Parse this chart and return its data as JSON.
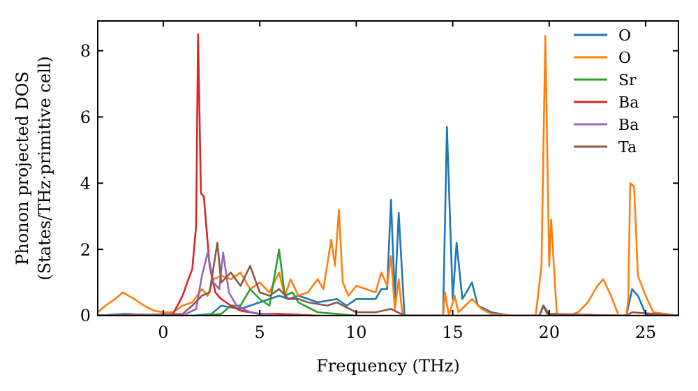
{
  "chart_data": {
    "type": "line",
    "xlabel": "Frequency (THz)",
    "ylabel": "Phonon projected DOS\n(States/THz·primitive cell)",
    "xlim": [
      -3.4,
      26.7
    ],
    "ylim": [
      0,
      8.9
    ],
    "xticks": [
      0,
      5,
      10,
      15,
      20,
      25
    ],
    "yticks": [
      0,
      2,
      4,
      6,
      8
    ],
    "grid": false,
    "legend": "top right",
    "marker": "none",
    "line_style": "solid",
    "series": [
      {
        "name": "O",
        "color": "#1f77b4",
        "x": [
          -3.4,
          -2,
          0,
          1.5,
          2.5,
          3,
          3.5,
          4,
          5,
          6,
          6.5,
          7,
          8,
          9,
          9.5,
          10,
          11,
          11.3,
          11.6,
          11.8,
          12,
          12.2,
          12.5,
          14.5,
          14.7,
          15,
          15.2,
          15.5,
          16,
          16.3,
          17,
          18,
          19.5,
          19.7,
          20,
          22,
          24,
          24.3,
          24.6,
          25,
          26.7
        ],
        "values": [
          0,
          0.05,
          0,
          0,
          0.05,
          0.3,
          0.25,
          0.2,
          0.4,
          0.6,
          0.5,
          0.6,
          0.4,
          0.5,
          0.3,
          0.5,
          0.5,
          0.8,
          0.8,
          3.5,
          0.5,
          3.1,
          0,
          0,
          5.7,
          0.5,
          2.2,
          0.5,
          1.0,
          0.3,
          0.1,
          0,
          0,
          0.3,
          0.05,
          0,
          0,
          0.8,
          0.6,
          0.05,
          0
        ]
      },
      {
        "name": "O",
        "color": "#ff7f0e",
        "x": [
          -3.4,
          -3,
          -2.5,
          -2.1,
          -1.5,
          -1,
          -0.5,
          0,
          0.5,
          1,
          1.5,
          2,
          2.3,
          2.6,
          3,
          3.5,
          4,
          4.5,
          5,
          5.5,
          6,
          6.3,
          6.6,
          7,
          7.5,
          8,
          8.3,
          8.7,
          8.9,
          9.1,
          9.3,
          9.6,
          10,
          10.5,
          11,
          11.3,
          11.6,
          11.8,
          12,
          12.2,
          12.4,
          14.5,
          14.6,
          14.8,
          15.1,
          15.3,
          16,
          16.5,
          17,
          18,
          19.3,
          19.6,
          19.8,
          20,
          20.1,
          20.4,
          21,
          21.5,
          22,
          22.5,
          22.8,
          23.2,
          23.6,
          24,
          24.1,
          24.2,
          24.4,
          24.6,
          25,
          25.4,
          26.7
        ],
        "values": [
          0.1,
          0.3,
          0.5,
          0.7,
          0.5,
          0.3,
          0.15,
          0.1,
          0.1,
          0.3,
          0.4,
          0.8,
          0.6,
          1.1,
          1.2,
          1.1,
          1.3,
          0.8,
          1.0,
          0.7,
          1.3,
          0.6,
          1.1,
          0.6,
          0.7,
          1.1,
          0.8,
          2.3,
          1.5,
          3.2,
          1.0,
          0.6,
          0.9,
          0.8,
          0.7,
          1.3,
          0.9,
          1.8,
          0.2,
          1.1,
          0,
          0,
          0.7,
          0,
          0.6,
          0.1,
          0.5,
          0.2,
          0.05,
          0,
          0,
          1.5,
          8.45,
          1.5,
          2.9,
          0,
          0,
          0.1,
          0.4,
          0.9,
          1.1,
          0.6,
          0,
          0,
          0.5,
          4.0,
          3.9,
          1.2,
          0.6,
          0.1,
          0
        ]
      },
      {
        "name": "Sr",
        "color": "#2ca02c",
        "x": [
          -3.4,
          2,
          3,
          3.5,
          4,
          4.5,
          5,
          5.5,
          6,
          6.3,
          6.7,
          7,
          8,
          9,
          10
        ],
        "values": [
          0,
          0,
          0.05,
          0.3,
          0.3,
          0.8,
          0.5,
          0.3,
          2.0,
          0.6,
          0.7,
          0.4,
          0.1,
          0.05,
          0
        ]
      },
      {
        "name": "Ba",
        "color": "#d62728",
        "x": [
          -3.4,
          0,
          0.5,
          1,
          1.3,
          1.5,
          1.7,
          1.8,
          1.95,
          2.1,
          2.4,
          2.7,
          3,
          3.5,
          4,
          5,
          6,
          8,
          26.7
        ],
        "values": [
          0,
          0,
          0.05,
          0.6,
          1.1,
          1.4,
          2.7,
          8.5,
          3.7,
          3.6,
          1.5,
          0.7,
          0.5,
          0.3,
          0.15,
          0.05,
          0.05,
          0,
          0
        ]
      },
      {
        "name": "Ba",
        "color": "#9467bd",
        "x": [
          -3.4,
          1,
          1.7,
          2,
          2.3,
          2.6,
          2.9,
          3.1,
          3.4,
          3.8,
          4.5,
          5,
          6
        ],
        "values": [
          0,
          0,
          0.2,
          1.2,
          1.9,
          1.0,
          0.8,
          1.9,
          0.7,
          0.3,
          0.1,
          0.05,
          0
        ]
      },
      {
        "name": "Ta",
        "color": "#8c564b",
        "x": [
          -3.4,
          1,
          1.5,
          2,
          2.4,
          2.8,
          3,
          3.5,
          4,
          4.5,
          5,
          5.5,
          6,
          6.5,
          7,
          7.5,
          8.5,
          9,
          10,
          11,
          11.8,
          12.5,
          19.5,
          19.7,
          19.9,
          24,
          24.3,
          26.7
        ],
        "values": [
          0,
          0.05,
          0.3,
          0.6,
          0.7,
          2.2,
          1.0,
          1.3,
          0.9,
          1.5,
          0.7,
          0.6,
          0.8,
          0.5,
          0.5,
          0.4,
          0.3,
          0.4,
          0.1,
          0.1,
          0.2,
          0,
          0,
          0.3,
          0.05,
          0,
          0.1,
          0
        ]
      }
    ]
  }
}
